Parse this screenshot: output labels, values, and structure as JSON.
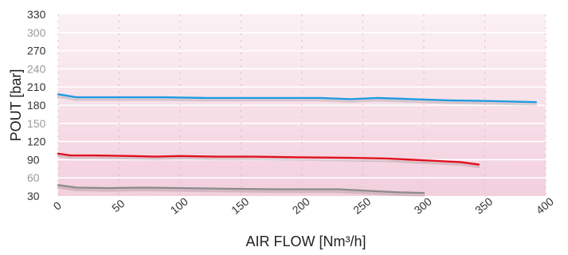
{
  "chart_data": {
    "type": "line",
    "xlabel": "AIR FLOW [Nm³/h]",
    "ylabel": "POUT [bar]",
    "xlim": [
      0,
      400
    ],
    "ylim": [
      30,
      330
    ],
    "xticks": [
      "0",
      "50",
      "100",
      "150",
      "200",
      "250",
      "300",
      "350",
      "400"
    ],
    "yticks": [
      "30",
      "60",
      "90",
      "120",
      "150",
      "180",
      "210",
      "240",
      "270",
      "300",
      "330"
    ],
    "grid": true,
    "colors": {
      "plot_bg": "#f6dde7",
      "grid": "#ffffff"
    },
    "series": [
      {
        "color": "#1e9be0",
        "x": [
          0,
          15,
          50,
          85,
          120,
          150,
          185,
          215,
          240,
          262,
          290,
          320,
          350,
          392
        ],
        "y": [
          198,
          193,
          193,
          193,
          192,
          192,
          192,
          192,
          190,
          192,
          190,
          188,
          187,
          185
        ]
      },
      {
        "color": "#e0101e",
        "x": [
          0,
          10,
          30,
          60,
          80,
          100,
          130,
          160,
          200,
          240,
          270,
          300,
          330,
          345
        ],
        "y": [
          100,
          97,
          97,
          96,
          95,
          96,
          95,
          95,
          94,
          93,
          92,
          89,
          86,
          82
        ]
      },
      {
        "color": "#8c8c8c",
        "x": [
          0,
          15,
          40,
          70,
          100,
          140,
          180,
          230,
          260,
          280,
          300
        ],
        "y": [
          48,
          44,
          43,
          44,
          43,
          42,
          41,
          41,
          38,
          36,
          35
        ]
      }
    ]
  }
}
